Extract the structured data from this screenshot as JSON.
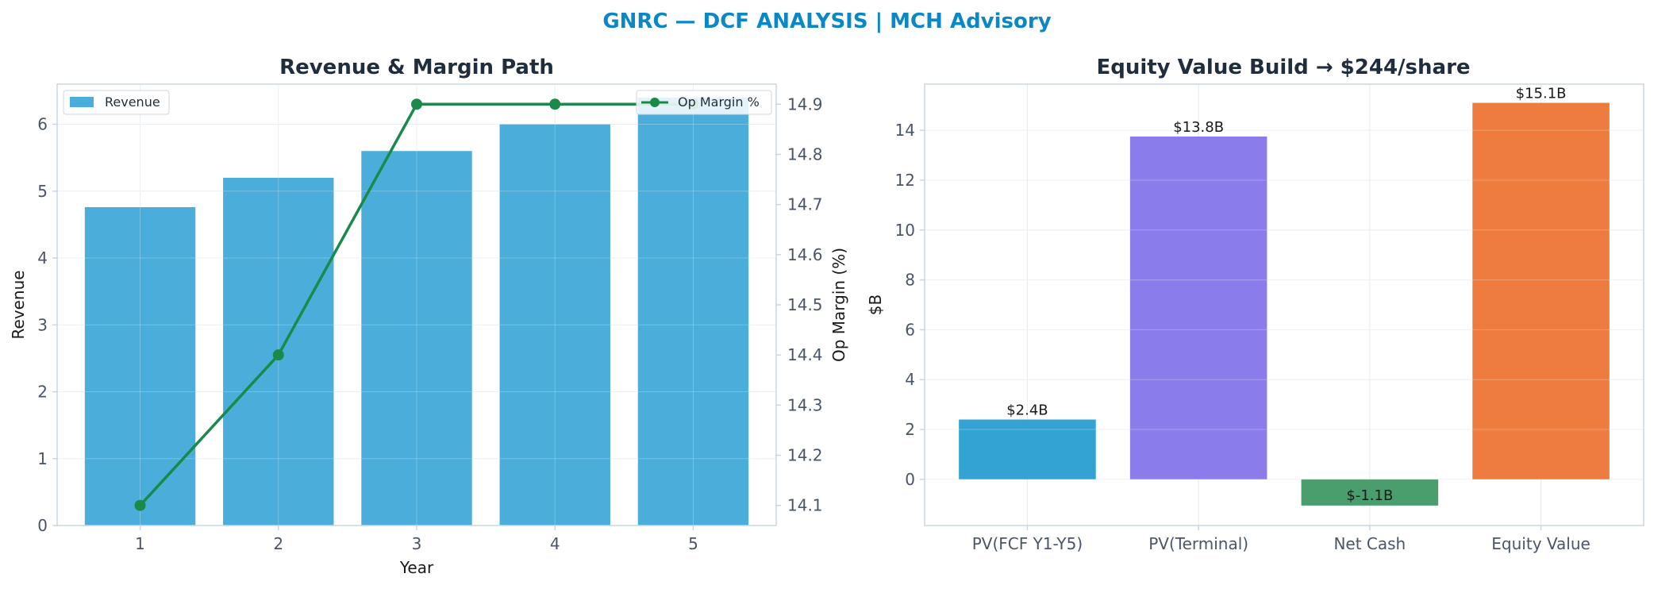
{
  "suptitle": "GNRC — DCF ANALYSIS | MCH Advisory",
  "colors": {
    "suptitle": "#0a88c6",
    "revenue_bar": "#4badda",
    "margin_line": "#1a8a4a",
    "axis": "#cbd5e0",
    "grid": "#e6ebf0"
  },
  "chart_data": [
    {
      "type": "bar",
      "title": "Revenue & Margin Path",
      "xlabel": "Year",
      "ylabel": "Revenue",
      "y2label": "Op Margin (%)",
      "categories": [
        "1",
        "2",
        "3",
        "4",
        "5"
      ],
      "ylim": [
        0,
        6.6
      ],
      "y2lim": [
        14.06,
        14.94
      ],
      "yticks": [
        0,
        1,
        2,
        3,
        4,
        5,
        6
      ],
      "y2ticks": [
        14.1,
        14.2,
        14.3,
        14.4,
        14.5,
        14.6,
        14.7,
        14.8,
        14.9
      ],
      "grid": true,
      "series": [
        {
          "name": "Revenue",
          "type": "bar",
          "axis": "left",
          "values": [
            4.76,
            5.2,
            5.6,
            6.0,
            6.4
          ]
        },
        {
          "name": "Op Margin %",
          "type": "line",
          "axis": "right",
          "values": [
            14.1,
            14.4,
            14.9,
            14.9,
            14.9
          ]
        }
      ],
      "legend": [
        "upper-left",
        "upper-right"
      ]
    },
    {
      "type": "bar",
      "title": "Equity Value Build → $244/share",
      "xlabel": "",
      "ylabel": "$B",
      "categories": [
        "PV(FCF Y1-Y5)",
        "PV(Terminal)",
        "Net Cash",
        "Equity Value"
      ],
      "values": [
        2.4,
        13.75,
        -1.05,
        15.1
      ],
      "data_labels": [
        "$2.4B",
        "$13.8B",
        "$-1.1B",
        "$15.1B"
      ],
      "bar_colors": [
        "#33a3d4",
        "#8a7deb",
        "#4a9e6e",
        "#ed7c3e"
      ],
      "ylim": [
        -1.85,
        15.85
      ],
      "yticks": [
        0,
        2,
        4,
        6,
        8,
        10,
        12,
        14
      ],
      "grid": true
    }
  ]
}
